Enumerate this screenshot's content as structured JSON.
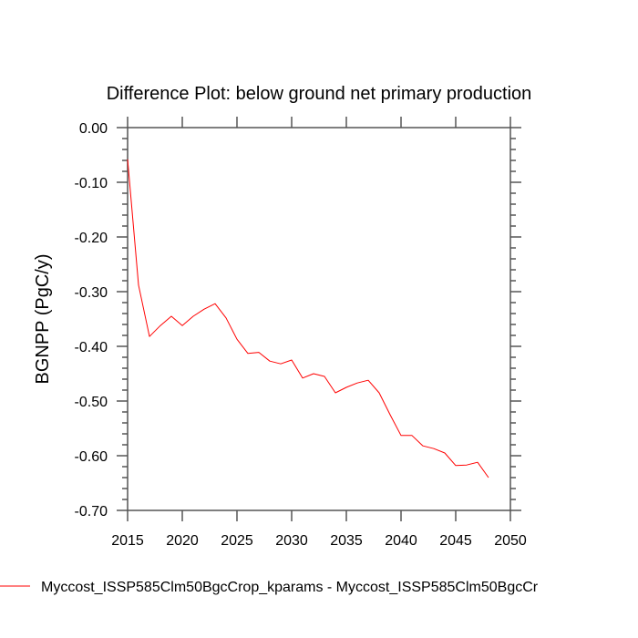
{
  "chart_data": {
    "type": "line",
    "title": "Difference Plot: below ground net primary production",
    "xlabel": "",
    "ylabel": "BGNPP  (PgC/y)",
    "xlim": [
      2015,
      2050
    ],
    "ylim": [
      -0.7,
      0.0
    ],
    "x_ticks": [
      2015,
      2020,
      2025,
      2030,
      2035,
      2040,
      2045,
      2050
    ],
    "x_tick_labels": [
      "2015",
      "2020",
      "2025",
      "2030",
      "2035",
      "2040",
      "2045",
      "2050"
    ],
    "y_ticks": [
      0.0,
      -0.1,
      -0.2,
      -0.3,
      -0.4,
      -0.5,
      -0.6,
      -0.7
    ],
    "y_tick_labels": [
      "0.00",
      "-0.10",
      "-0.20",
      "-0.30",
      "-0.40",
      "-0.50",
      "-0.60",
      "-0.70"
    ],
    "grid": false,
    "legend_position": "bottom",
    "series": [
      {
        "name": "Myccost_ISSP585Clm50BgcCrop_kparams - Myccost_ISSP585Clm50BgcCr",
        "color": "#ff0000",
        "x": [
          2015,
          2016,
          2017,
          2018,
          2019,
          2020,
          2021,
          2022,
          2023,
          2024,
          2025,
          2026,
          2027,
          2028,
          2029,
          2030,
          2031,
          2032,
          2033,
          2034,
          2035,
          2036,
          2037,
          2038,
          2039,
          2040,
          2041,
          2042,
          2043,
          2044,
          2045,
          2046,
          2047,
          2048
        ],
        "values": [
          -0.058,
          -0.288,
          -0.382,
          -0.362,
          -0.345,
          -0.362,
          -0.345,
          -0.332,
          -0.322,
          -0.348,
          -0.387,
          -0.413,
          -0.411,
          -0.427,
          -0.432,
          -0.425,
          -0.458,
          -0.45,
          -0.455,
          -0.485,
          -0.475,
          -0.467,
          -0.462,
          -0.485,
          -0.525,
          -0.563,
          -0.563,
          -0.582,
          -0.587,
          -0.595,
          -0.618,
          -0.617,
          -0.612,
          -0.64
        ]
      }
    ]
  }
}
